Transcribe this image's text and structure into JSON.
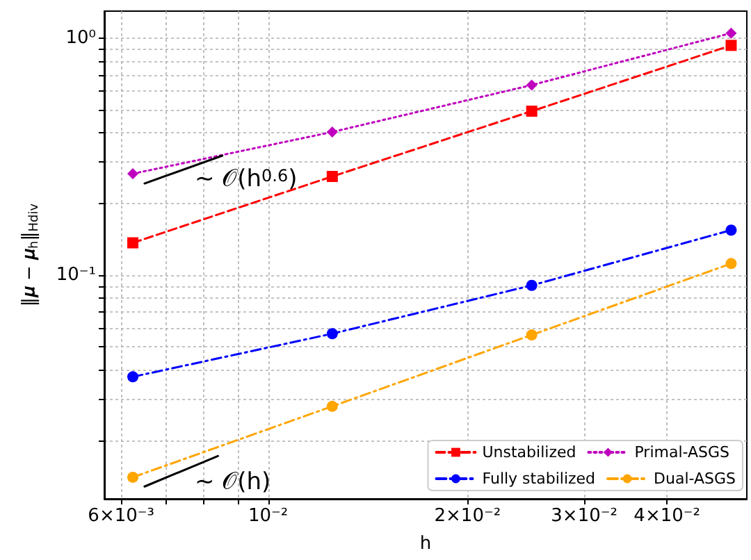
{
  "chart_data": {
    "type": "line",
    "xlabel": "h",
    "ylabel": "‖𝝁 − 𝝁$_{h}$‖$_{Hdiv}$",
    "log": "xy",
    "grid": true,
    "legend": "bottom right",
    "xlim": [
      0.00566,
      0.0528
    ],
    "ylim": [
      0.0114,
      1.3
    ],
    "xticks": [
      {
        "value": 0.006,
        "label": "6×10⁻³"
      },
      {
        "value": 0.007,
        "label": null
      },
      {
        "value": 0.008,
        "label": null
      },
      {
        "value": 0.009,
        "label": null
      },
      {
        "value": 0.01,
        "label": "10⁻²"
      },
      {
        "value": 0.02,
        "label": "2×10⁻²"
      },
      {
        "value": 0.03,
        "label": "3×10⁻²"
      },
      {
        "value": 0.04,
        "label": "4×10⁻²"
      }
    ],
    "yticks": [
      {
        "value": 0.02,
        "label": null
      },
      {
        "value": 0.03,
        "label": null
      },
      {
        "value": 0.04,
        "label": null
      },
      {
        "value": 0.05,
        "label": null
      },
      {
        "value": 0.06,
        "label": null
      },
      {
        "value": 0.07,
        "label": null
      },
      {
        "value": 0.08,
        "label": null
      },
      {
        "value": 0.09,
        "label": null
      },
      {
        "value": 0.1,
        "label": "10⁻¹"
      },
      {
        "value": 0.2,
        "label": null
      },
      {
        "value": 0.3,
        "label": null
      },
      {
        "value": 0.4,
        "label": null
      },
      {
        "value": 0.5,
        "label": null
      },
      {
        "value": 0.6,
        "label": null
      },
      {
        "value": 0.7,
        "label": null
      },
      {
        "value": 0.8,
        "label": null
      },
      {
        "value": 0.9,
        "label": null
      },
      {
        "value": 1,
        "label": "10⁰"
      }
    ],
    "x": [
      0.00625,
      0.0125,
      0.025,
      0.05
    ],
    "series": [
      {
        "name": "Unstabilized",
        "color": "#ff0000",
        "marker": "square",
        "line_style": "dashed",
        "values": [
          0.137,
          0.261,
          0.492,
          0.932
        ]
      },
      {
        "name": "Fully stabilized",
        "color": "#0000ff",
        "marker": "circle",
        "line_style": "dashdot",
        "values": [
          0.0373,
          0.0567,
          0.0906,
          0.155
        ]
      },
      {
        "name": "Primal-ASGS",
        "color": "#bf00bf",
        "marker": "diamond",
        "line_style": "dotted",
        "values": [
          0.268,
          0.402,
          0.634,
          1.05
        ]
      },
      {
        "name": "Dual-ASGS",
        "color": "#ffa500",
        "marker": "circle",
        "line_style": "dashdot",
        "values": [
          0.01406,
          0.028,
          0.056,
          0.112
        ]
      },
      {
        "color": "#000000",
        "marker": "none",
        "line_style": "solid",
        "x": [
          0.00651,
          0.00853
        ],
        "values": [
          0.2438,
          0.3195
        ]
      },
      {
        "color": "#000000",
        "marker": "none",
        "line_style": "solid",
        "x": [
          0.00651,
          0.0084
        ],
        "values": [
          0.01285,
          0.01729
        ]
      }
    ],
    "annotations": [
      "∼ 𝒪(h$^{0.6}$)",
      "∼ 𝒪(h)"
    ]
  }
}
